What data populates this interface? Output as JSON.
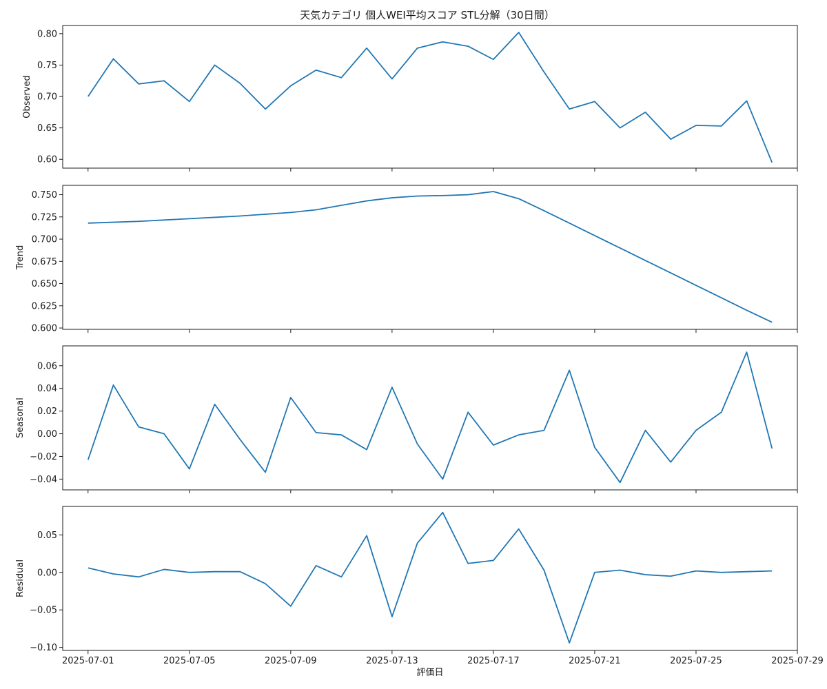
{
  "chart_data": {
    "type": "line",
    "title": "天気カテゴリ 個人WEI平均スコア STL分解（30日間）",
    "xlabel": "評価日",
    "line_color": "#1f77b4",
    "x": [
      "2025-07-01",
      "2025-07-02",
      "2025-07-03",
      "2025-07-04",
      "2025-07-05",
      "2025-07-06",
      "2025-07-07",
      "2025-07-08",
      "2025-07-09",
      "2025-07-10",
      "2025-07-11",
      "2025-07-12",
      "2025-07-13",
      "2025-07-14",
      "2025-07-15",
      "2025-07-16",
      "2025-07-17",
      "2025-07-18",
      "2025-07-19",
      "2025-07-20",
      "2025-07-21",
      "2025-07-22",
      "2025-07-23",
      "2025-07-24",
      "2025-07-25",
      "2025-07-26",
      "2025-07-27",
      "2025-07-28"
    ],
    "x_range": [
      "2025-06-30",
      "2025-07-29"
    ],
    "x_ticks": [
      "2025-07-01",
      "2025-07-05",
      "2025-07-09",
      "2025-07-13",
      "2025-07-17",
      "2025-07-21",
      "2025-07-25",
      "2025-07-29"
    ],
    "panels": [
      {
        "ylabel": "Observed",
        "ylim": [
          0.586,
          0.813
        ],
        "yticks": [
          0.6,
          0.65,
          0.7,
          0.75,
          0.8
        ],
        "ytick_labels": [
          "0.60",
          "0.65",
          "0.70",
          "0.75",
          "0.80"
        ],
        "values": [
          0.7,
          0.76,
          0.72,
          0.725,
          0.692,
          0.75,
          0.721,
          0.68,
          0.717,
          0.742,
          0.73,
          0.777,
          0.728,
          0.777,
          0.787,
          0.78,
          0.759,
          0.802,
          0.739,
          0.68,
          0.692,
          0.65,
          0.675,
          0.632,
          0.654,
          0.653,
          0.693,
          0.595
        ]
      },
      {
        "ylabel": "Trend",
        "ylim": [
          0.5985,
          0.7605
        ],
        "yticks": [
          0.6,
          0.625,
          0.65,
          0.675,
          0.7,
          0.725,
          0.75
        ],
        "ytick_labels": [
          "0.600",
          "0.625",
          "0.650",
          "0.675",
          "0.700",
          "0.725",
          "0.750"
        ],
        "values": [
          0.718,
          0.719,
          0.72,
          0.7215,
          0.723,
          0.7245,
          0.726,
          0.728,
          0.73,
          0.733,
          0.738,
          0.743,
          0.7465,
          0.7485,
          0.749,
          0.75,
          0.7535,
          0.7455,
          0.732,
          0.718,
          0.704,
          0.69,
          0.676,
          0.662,
          0.648,
          0.634,
          0.62,
          0.6065
        ]
      },
      {
        "ylabel": "Seasonal",
        "ylim": [
          -0.0495,
          0.0775
        ],
        "yticks": [
          -0.04,
          -0.02,
          0.0,
          0.02,
          0.04,
          0.06
        ],
        "ytick_labels": [
          "−0.04",
          "−0.02",
          "0.00",
          "0.02",
          "0.04",
          "0.06"
        ],
        "values": [
          -0.023,
          0.043,
          0.006,
          0.0,
          -0.031,
          0.026,
          -0.005,
          -0.034,
          0.032,
          0.001,
          -0.001,
          -0.014,
          0.041,
          -0.009,
          -0.04,
          0.019,
          -0.01,
          -0.001,
          0.003,
          0.056,
          -0.012,
          -0.043,
          0.003,
          -0.025,
          0.003,
          0.019,
          0.072,
          -0.013
        ]
      },
      {
        "ylabel": "Residual",
        "ylim": [
          -0.104,
          0.088
        ],
        "yticks": [
          -0.1,
          -0.05,
          0.0,
          0.05
        ],
        "ytick_labels": [
          "−0.10",
          "−0.05",
          "0.00",
          "0.05"
        ],
        "values": [
          0.006,
          -0.002,
          -0.006,
          0.004,
          0.0,
          0.001,
          0.001,
          -0.015,
          -0.045,
          0.009,
          -0.006,
          0.049,
          -0.059,
          0.039,
          0.08,
          0.012,
          0.016,
          0.058,
          0.003,
          -0.094,
          0.0,
          0.003,
          -0.003,
          -0.005,
          0.002,
          0.0,
          0.001,
          0.002
        ]
      }
    ]
  }
}
